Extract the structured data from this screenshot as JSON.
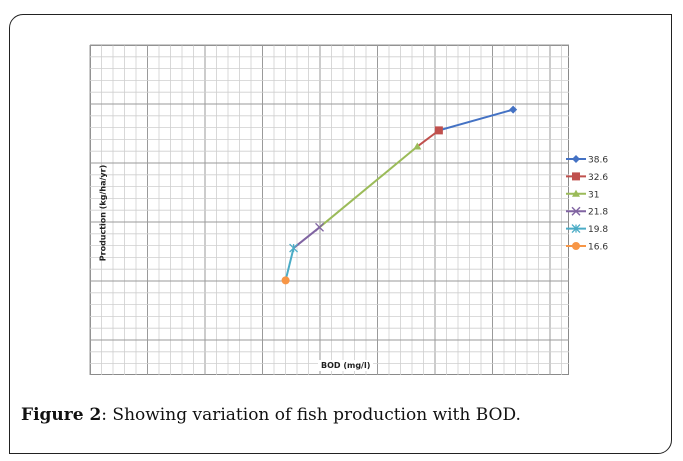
{
  "chart_data": {
    "type": "line",
    "xlabel": "BOD (mg/l)",
    "ylabel": "Production (kg/ha/yr)",
    "grid": true,
    "legend_position": "right",
    "x_range": [
      0,
      12
    ],
    "y_range": [
      0,
      14.3
    ],
    "series": [
      {
        "name": "38.6",
        "color": "#4472c4",
        "marker": "diamond",
        "points": [
          [
            10.6,
            11.5
          ],
          [
            8.74,
            10.6
          ]
        ]
      },
      {
        "name": "32.6",
        "color": "#c0504d",
        "marker": "square",
        "points": [
          [
            8.74,
            10.6
          ],
          [
            8.2,
            9.9
          ]
        ]
      },
      {
        "name": "31",
        "color": "#9bbb59",
        "marker": "triangle",
        "points": [
          [
            8.2,
            9.9
          ],
          [
            5.75,
            6.4
          ]
        ]
      },
      {
        "name": "21.8",
        "color": "#8064a2",
        "marker": "x",
        "points": [
          [
            5.75,
            6.4
          ],
          [
            5.1,
            5.5
          ]
        ]
      },
      {
        "name": "19.8",
        "color": "#4bacc6",
        "marker": "star",
        "points": [
          [
            5.1,
            5.5
          ],
          [
            4.9,
            4.1
          ]
        ]
      },
      {
        "name": "16.6",
        "color": "#f79646",
        "marker": "circle",
        "points": [
          [
            4.9,
            4.1
          ],
          [
            4.9,
            4.1
          ]
        ]
      }
    ],
    "plot_points": [
      [
        4.9,
        4.1
      ],
      [
        5.1,
        5.5
      ],
      [
        5.75,
        6.4
      ],
      [
        8.2,
        9.9
      ],
      [
        8.74,
        10.6
      ],
      [
        10.6,
        11.5
      ]
    ]
  },
  "caption": {
    "label": "Figure 2",
    "text": ": Showing variation of fish production with BOD."
  }
}
